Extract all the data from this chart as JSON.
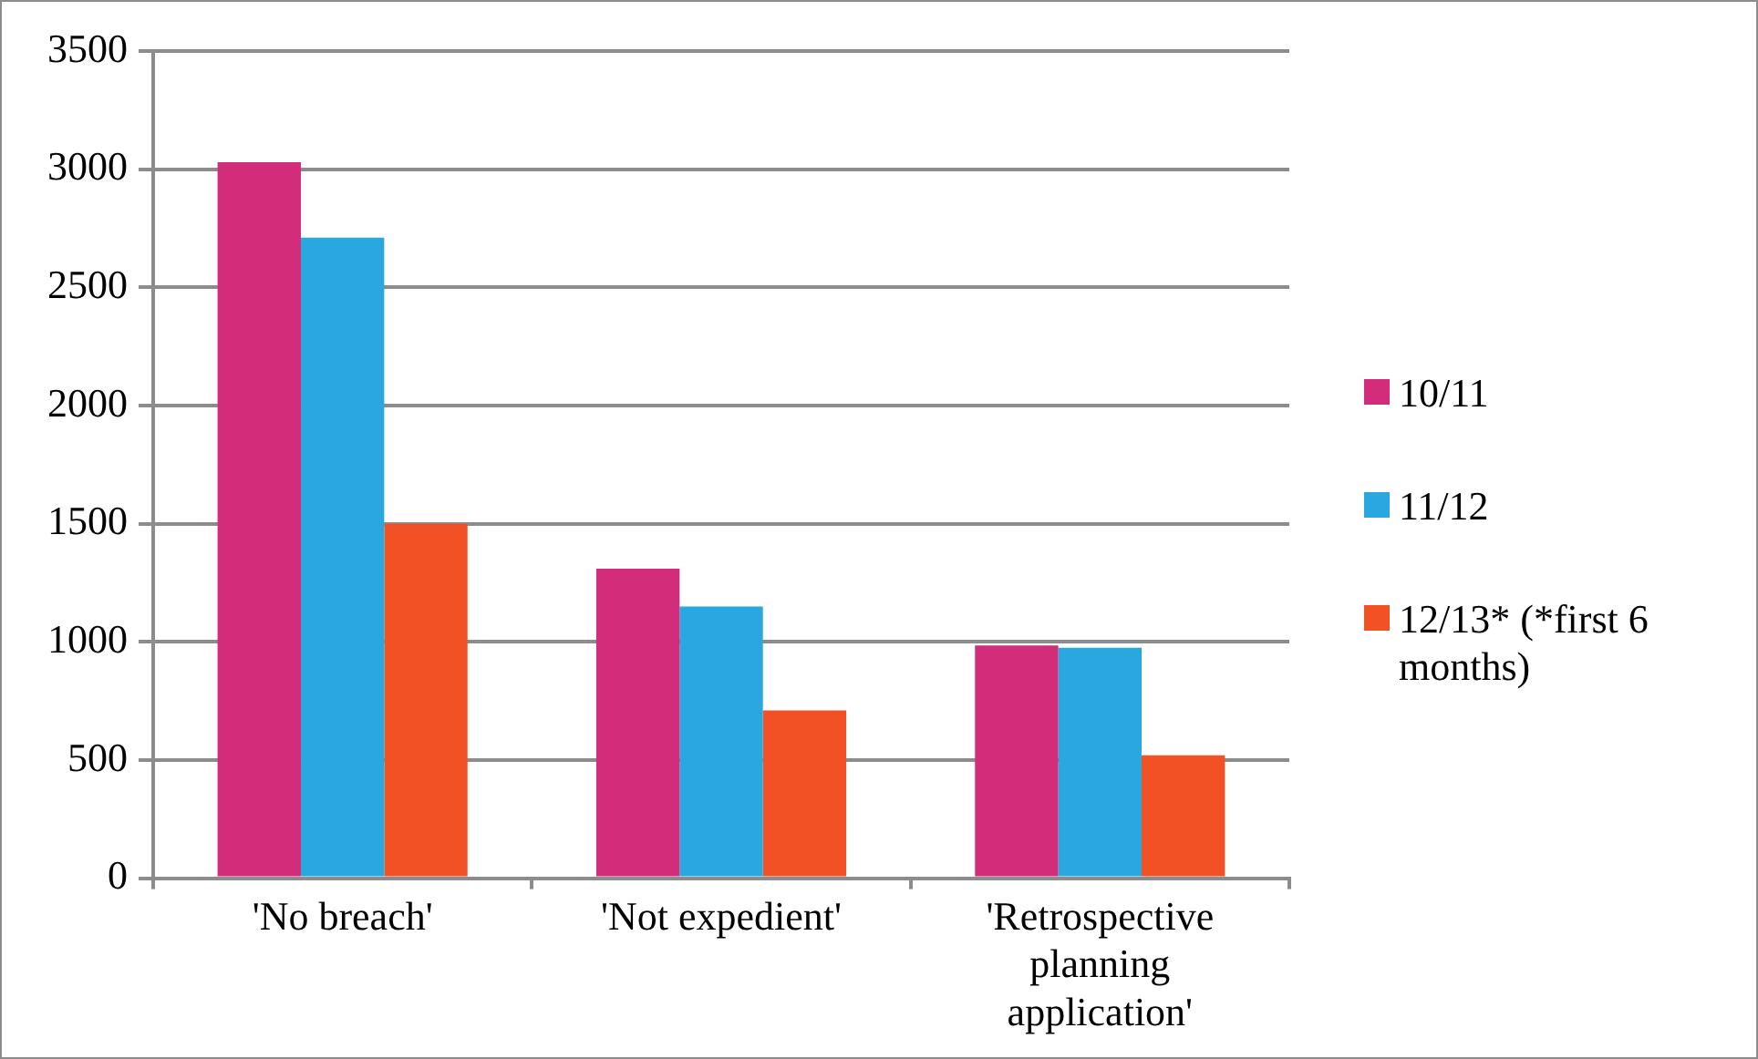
{
  "chart_data": {
    "type": "bar",
    "categories": [
      "'No breach'",
      "'Not expedient'",
      "'Retrospective planning application'"
    ],
    "series": [
      {
        "name": "10/11",
        "color": "#d22d7b",
        "values": [
          3030,
          1310,
          985
        ]
      },
      {
        "name": "11/12",
        "color": "#29a8e0",
        "values": [
          2710,
          1150,
          975
        ]
      },
      {
        "name": "12/13* (*first 6 months)",
        "color": "#f15124",
        "values": [
          1500,
          710,
          520
        ]
      }
    ],
    "ylim": [
      0,
      3500
    ],
    "yticks": [
      0,
      500,
      1000,
      1500,
      2000,
      2500,
      3000,
      3500
    ],
    "grid": "y",
    "legend": "right"
  }
}
